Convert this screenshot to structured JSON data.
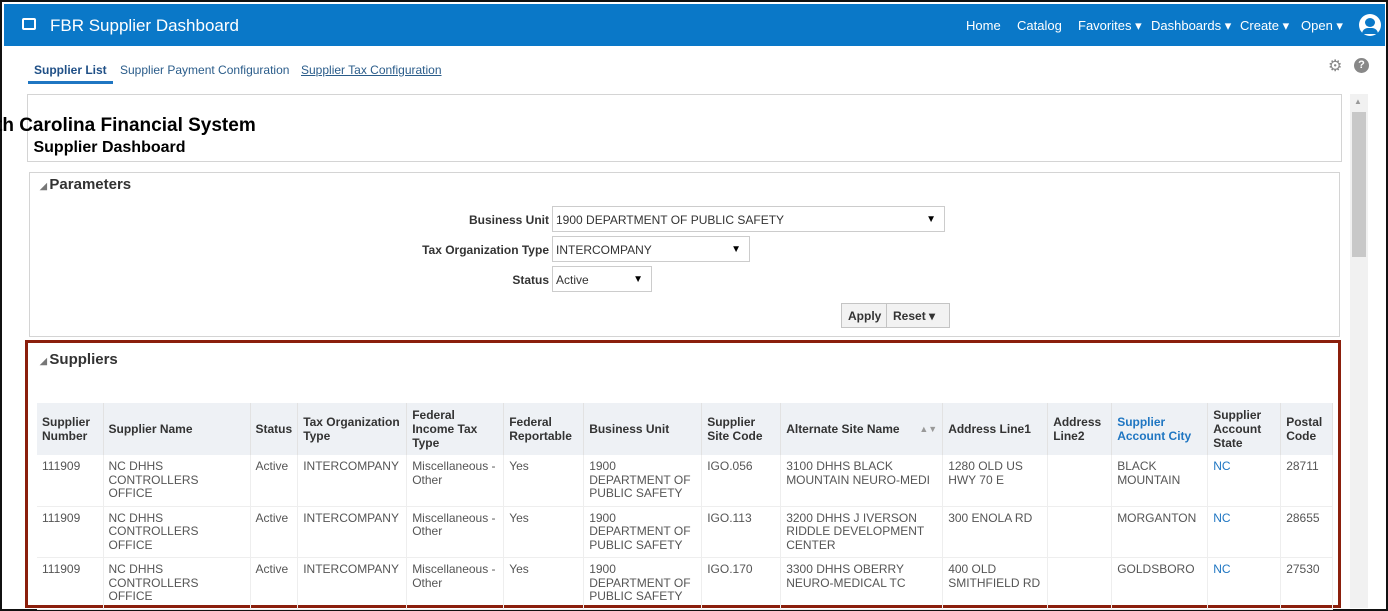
{
  "header": {
    "title": "FBR Supplier Dashboard",
    "nav": [
      "Home",
      "Catalog",
      "Favorites ▾",
      "Dashboards ▾",
      "Create ▾",
      "Open ▾"
    ],
    "brand_color": "#0a78c8"
  },
  "tabs": [
    {
      "label": "Supplier List",
      "active": true
    },
    {
      "label": "Supplier Payment Configuration"
    },
    {
      "label": "Supplier Tax Configuration"
    }
  ],
  "report": {
    "title": "North Carolina Financial System",
    "subtitle": "Supplier Dashboard"
  },
  "parameters": {
    "heading": "Parameters",
    "business_unit_label": "Business Unit",
    "business_unit": "1900 DEPARTMENT OF PUBLIC SAFETY",
    "tax_org_label": "Tax Organization Type",
    "tax_org": "INTERCOMPANY",
    "status_label": "Status",
    "status": "Active",
    "apply": "Apply",
    "reset": "Reset ▾"
  },
  "suppliers": {
    "heading": "Suppliers",
    "columns": [
      "Supplier Number",
      "Supplier Name",
      "Status",
      "Tax Organization Type",
      "Federal Income Tax Type",
      "Federal Reportable",
      "Business Unit",
      "Supplier Site Code",
      "Alternate Site Name",
      "Address Line1",
      "Address Line2",
      "Supplier Account City",
      "Supplier Account State",
      "Postal Code"
    ],
    "rows": [
      [
        "111909",
        "NC DHHS CONTROLLERS OFFICE",
        "Active",
        "INTERCOMPANY",
        "Miscellaneous - Other",
        "Yes",
        "1900 DEPARTMENT OF PUBLIC SAFETY",
        "IGO.056",
        "3100 DHHS BLACK MOUNTAIN NEURO-MEDI",
        "1280 OLD US HWY 70 E",
        "",
        "BLACK MOUNTAIN",
        "NC",
        "28711"
      ],
      [
        "111909",
        "NC DHHS CONTROLLERS OFFICE",
        "Active",
        "INTERCOMPANY",
        "Miscellaneous - Other",
        "Yes",
        "1900 DEPARTMENT OF PUBLIC SAFETY",
        "IGO.113",
        "3200 DHHS J IVERSON RIDDLE DEVELOPMENT CENTER",
        "300 ENOLA RD",
        "",
        "MORGANTON",
        "NC",
        "28655"
      ],
      [
        "111909",
        "NC DHHS CONTROLLERS OFFICE",
        "Active",
        "INTERCOMPANY",
        "Miscellaneous - Other",
        "Yes",
        "1900 DEPARTMENT OF PUBLIC SAFETY",
        "IGO.170",
        "3300 DHHS OBERRY NEURO-MEDICAL TC",
        "400 OLD SMITHFIELD RD",
        "",
        "GOLDSBORO",
        "NC",
        "27530"
      ]
    ]
  }
}
